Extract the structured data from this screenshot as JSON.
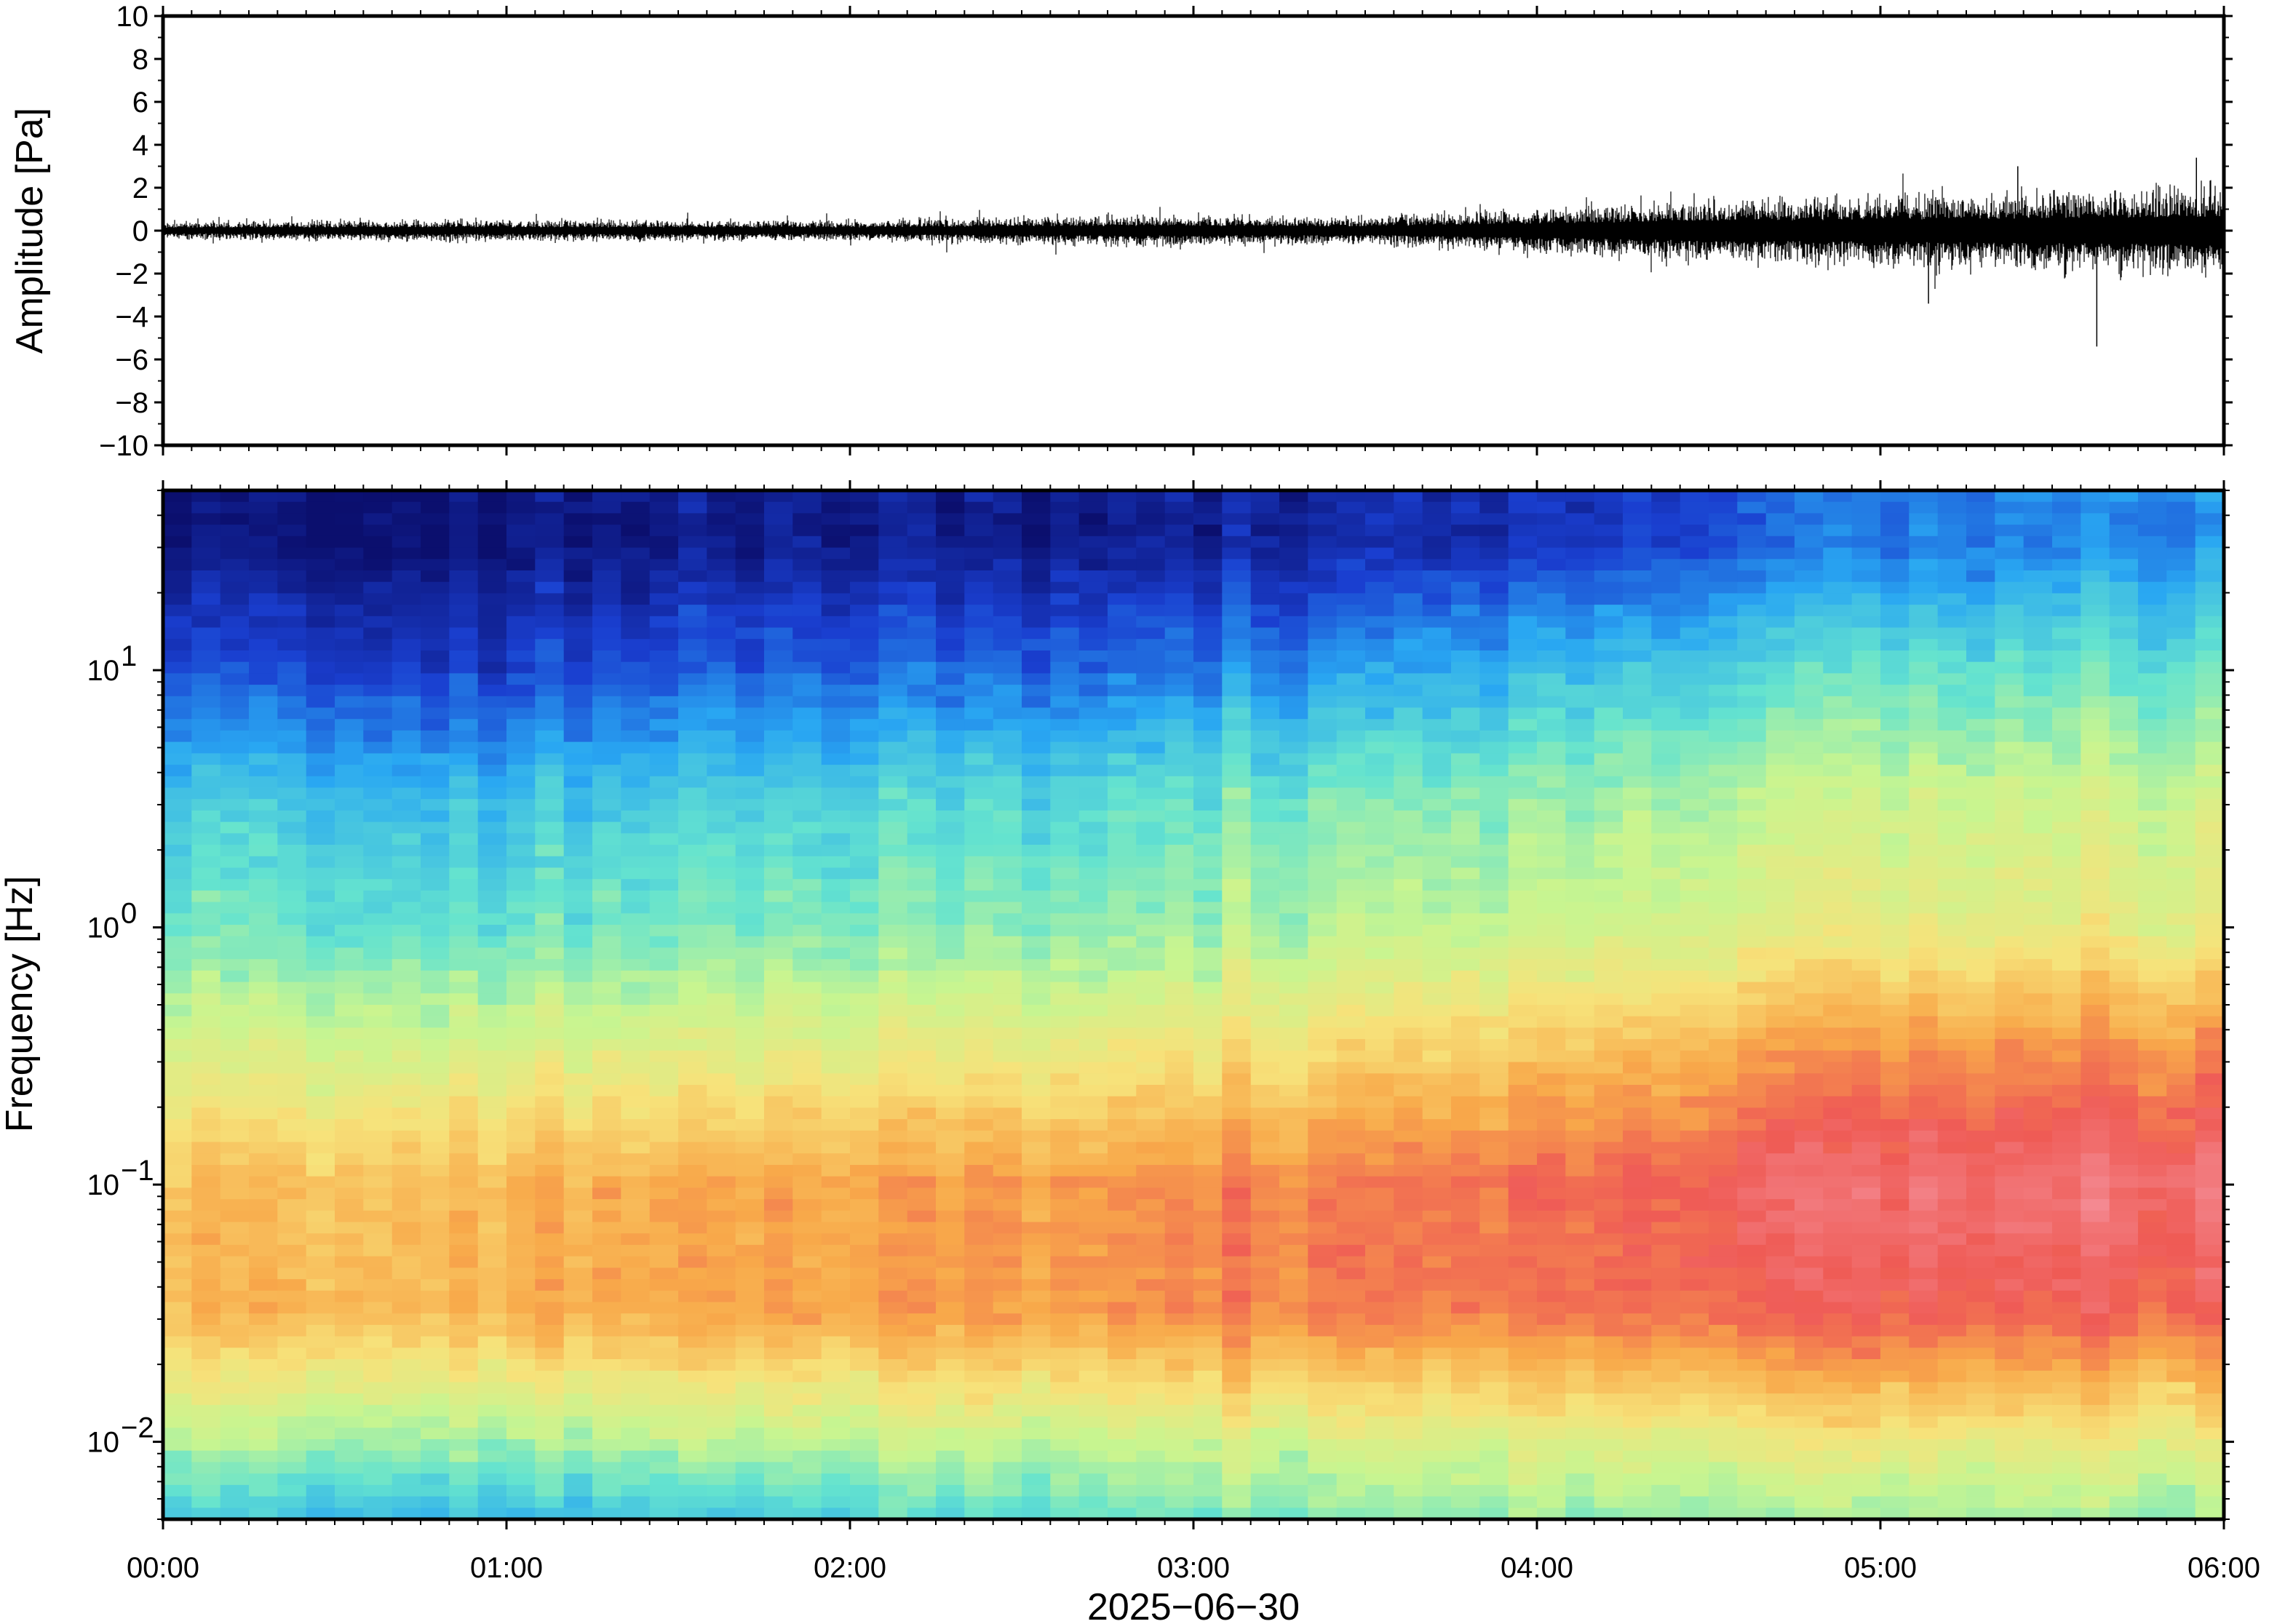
{
  "chart_data": [
    {
      "type": "line",
      "panel": "waveform",
      "ylabel": "Amplitude [Pa]",
      "ylim": [
        -10,
        10
      ],
      "yticks": [
        "10",
        "8",
        "6",
        "4",
        "2",
        "0",
        "−2",
        "−4",
        "−6",
        "−8",
        "−10"
      ],
      "x_range_hours": [
        0,
        6
      ],
      "envelope": {
        "x_hours": [
          0.0,
          0.5,
          1.0,
          1.5,
          2.0,
          2.5,
          3.0,
          3.5,
          4.0,
          4.5,
          5.0,
          5.5,
          6.0
        ],
        "amplitude_pa": [
          0.5,
          0.6,
          0.6,
          0.6,
          0.6,
          0.8,
          0.9,
          0.8,
          1.3,
          1.8,
          2.0,
          2.3,
          2.6
        ]
      },
      "spikes": [
        {
          "x_hours": 5.63,
          "min_pa": -5.4
        },
        {
          "x_hours": 5.14,
          "min_pa": -3.4
        },
        {
          "x_hours": 5.92,
          "max_pa": 3.4
        },
        {
          "x_hours": 5.4,
          "max_pa": 3.0
        }
      ],
      "grid": false,
      "color": "#000000"
    },
    {
      "type": "heatmap",
      "panel": "spectrogram",
      "ylabel": "Frequency [Hz]",
      "yscale": "log",
      "ylim": [
        0.005,
        50
      ],
      "yticks": [
        {
          "base": "10",
          "exp": "1",
          "value": 10
        },
        {
          "base": "10",
          "exp": "0",
          "value": 1
        },
        {
          "base": "10",
          "exp": "−1",
          "value": 0.1
        },
        {
          "base": "10",
          "exp": "−2",
          "value": 0.01
        }
      ],
      "x_range_hours": [
        0,
        6
      ],
      "colormap": "jet-like",
      "colors": [
        "#0b0f6e",
        "#1a3fd0",
        "#29a7f2",
        "#64e3cf",
        "#c8f590",
        "#f7e27a",
        "#f8a94a",
        "#ef5b55",
        "#f48c95"
      ],
      "intensity_profile": {
        "x_hours": [
          0.0,
          1.0,
          2.0,
          3.0,
          4.0,
          5.0,
          6.0
        ],
        "log10_freq": [
          1.5,
          1.0,
          0.5,
          0.0,
          -0.5,
          -1.0,
          -1.5,
          -2.0,
          -2.3
        ],
        "level": [
          [
            0.02,
            0.15,
            0.32,
            0.4,
            0.55,
            0.7,
            0.72,
            0.48,
            0.32
          ],
          [
            0.02,
            0.12,
            0.3,
            0.38,
            0.55,
            0.72,
            0.73,
            0.46,
            0.28
          ],
          [
            0.04,
            0.18,
            0.34,
            0.42,
            0.58,
            0.76,
            0.76,
            0.5,
            0.34
          ],
          [
            0.05,
            0.2,
            0.38,
            0.45,
            0.62,
            0.8,
            0.8,
            0.52,
            0.4
          ],
          [
            0.1,
            0.3,
            0.45,
            0.52,
            0.7,
            0.86,
            0.84,
            0.56,
            0.45
          ],
          [
            0.18,
            0.36,
            0.5,
            0.56,
            0.78,
            0.92,
            0.86,
            0.58,
            0.44
          ],
          [
            0.22,
            0.38,
            0.52,
            0.58,
            0.8,
            0.94,
            0.86,
            0.58,
            0.44
          ]
        ]
      }
    }
  ],
  "x_axis": {
    "tick_labels": [
      "00:00",
      "01:00",
      "02:00",
      "03:00",
      "04:00",
      "05:00",
      "06:00"
    ],
    "label": "2025−06−30"
  }
}
